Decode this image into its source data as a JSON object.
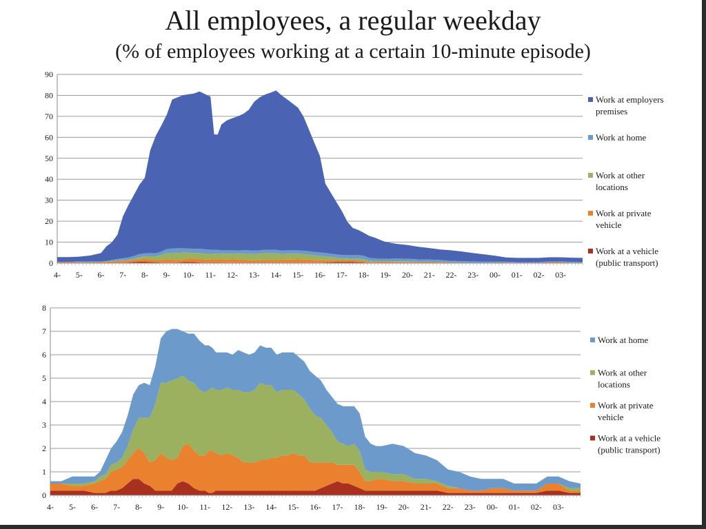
{
  "title": "All employees, a regular weekday",
  "subtitle": "(% of employees working at a certain 10-minute episode)",
  "x_ticks": [
    "4-",
    "5-",
    "6-",
    "7-",
    "8-",
    "9-",
    "10-",
    "11-",
    "12-",
    "13-",
    "14-",
    "15-",
    "16-",
    "17-",
    "18-",
    "19-",
    "20-",
    "21-",
    "22-",
    "23-",
    "00-",
    "01-",
    "02-",
    "03-"
  ],
  "chart_data": [
    {
      "type": "area",
      "stacked": true,
      "x_unit": "hour of day (10-minute episodes, 04:00 to 04:00)",
      "ylim": [
        0,
        90
      ],
      "y_ticks": [
        0,
        10,
        20,
        30,
        40,
        50,
        60,
        70,
        80,
        90
      ],
      "grid": true,
      "legend_position": "right",
      "x": [
        4,
        4.5,
        5,
        5.5,
        6,
        6.25,
        6.5,
        6.75,
        7,
        7.25,
        7.5,
        7.75,
        8,
        8.25,
        8.5,
        8.75,
        9,
        9.25,
        9.5,
        9.75,
        10,
        10.25,
        10.5,
        10.75,
        11,
        11.17,
        11.33,
        11.5,
        11.75,
        12,
        12.25,
        12.5,
        12.75,
        13,
        13.25,
        13.5,
        13.75,
        14,
        14.25,
        14.5,
        14.75,
        15,
        15.25,
        15.5,
        15.75,
        16,
        16.25,
        16.5,
        16.75,
        17,
        17.25,
        17.5,
        17.75,
        18,
        18.25,
        18.5,
        18.75,
        19,
        19.5,
        20,
        20.5,
        21,
        21.5,
        22,
        22.5,
        23,
        23.5,
        24,
        24.5,
        25,
        25.5,
        26,
        26.5,
        27,
        27.5,
        28
      ],
      "series": [
        {
          "name": "Work at a vehicle (public transport)",
          "color": "#a9301e",
          "values": [
            0.2,
            0.2,
            0.2,
            0.2,
            0.1,
            0.1,
            0.1,
            0.2,
            0.2,
            0.3,
            0.5,
            0.7,
            0.7,
            0.5,
            0.4,
            0.2,
            0.2,
            0.2,
            0.2,
            0.5,
            0.6,
            0.5,
            0.3,
            0.2,
            0.2,
            0.1,
            0.1,
            0.2,
            0.2,
            0.2,
            0.2,
            0.2,
            0.2,
            0.2,
            0.2,
            0.2,
            0.2,
            0.2,
            0.2,
            0.2,
            0.2,
            0.2,
            0.2,
            0.2,
            0.2,
            0.2,
            0.3,
            0.4,
            0.5,
            0.6,
            0.5,
            0.5,
            0.4,
            0.3,
            0.2,
            0.2,
            0.2,
            0.2,
            0.2,
            0.2,
            0.2,
            0.2,
            0.2,
            0.1,
            0.1,
            0.1,
            0.1,
            0.1,
            0.1,
            0.1,
            0.1,
            0.1,
            0.2,
            0.2,
            0.1,
            0.1
          ]
        },
        {
          "name": "Work at private vehicle",
          "color": "#e9812f",
          "values": [
            0.3,
            0.3,
            0.2,
            0.2,
            0.4,
            0.5,
            0.6,
            0.8,
            0.9,
            0.9,
            1.0,
            1.1,
            1.3,
            1.3,
            1.0,
            1.3,
            1.6,
            1.4,
            1.3,
            1.1,
            1.5,
            1.7,
            1.6,
            1.5,
            1.5,
            1.8,
            1.8,
            1.6,
            1.5,
            1.6,
            1.5,
            1.4,
            1.2,
            1.2,
            1.2,
            1.3,
            1.3,
            1.4,
            1.4,
            1.5,
            1.5,
            1.6,
            1.5,
            1.5,
            1.2,
            1.2,
            1.1,
            1.0,
            0.9,
            0.7,
            0.8,
            0.8,
            0.9,
            0.7,
            0.4,
            0.4,
            0.5,
            0.5,
            0.4,
            0.4,
            0.3,
            0.3,
            0.3,
            0.2,
            0.2,
            0.1,
            0.1,
            0.2,
            0.2,
            0.1,
            0.1,
            0.1,
            0.3,
            0.3,
            0.1,
            0.1
          ]
        },
        {
          "name": "Work at other locations",
          "color": "#9bb15f",
          "values": [
            0,
            0,
            0.1,
            0.1,
            0.1,
            0.2,
            0.2,
            0.3,
            0.3,
            0.4,
            0.6,
            1.0,
            1.3,
            1.5,
            1.9,
            2.4,
            3.0,
            3.2,
            3.4,
            3.4,
            3.0,
            2.7,
            2.9,
            2.8,
            2.7,
            2.6,
            2.7,
            2.7,
            2.8,
            2.8,
            2.8,
            2.9,
            3.0,
            3.0,
            3.1,
            3.3,
            3.2,
            3.1,
            2.8,
            2.8,
            2.8,
            2.7,
            2.6,
            2.4,
            2.3,
            2.0,
            1.9,
            1.6,
            1.3,
            1.0,
            0.9,
            0.8,
            0.9,
            0.9,
            0.5,
            0.4,
            0.3,
            0.3,
            0.3,
            0.3,
            0.2,
            0.2,
            0.1,
            0.1,
            0,
            0,
            0,
            0,
            0,
            0,
            0,
            0,
            0,
            0,
            0.1,
            0.1
          ]
        },
        {
          "name": "Work at home",
          "color": "#6c9bcb",
          "values": [
            0.1,
            0.1,
            0.3,
            0.3,
            0.2,
            0.2,
            0.6,
            0.7,
            0.9,
            1.1,
            1.3,
            1.5,
            1.4,
            1.5,
            1.4,
            1.6,
            1.9,
            2.2,
            2.2,
            2.1,
            1.9,
            2.0,
            2.1,
            2.1,
            2.0,
            1.9,
            1.7,
            1.6,
            1.6,
            1.5,
            1.5,
            1.7,
            1.7,
            1.6,
            1.6,
            1.6,
            1.6,
            1.6,
            1.6,
            1.6,
            1.6,
            1.6,
            1.6,
            1.6,
            1.6,
            1.7,
            1.6,
            1.5,
            1.5,
            1.6,
            1.6,
            1.7,
            1.6,
            1.6,
            1.4,
            1.2,
            1.1,
            1.1,
            1.3,
            1.2,
            1.1,
            1.0,
            0.9,
            0.7,
            0.7,
            0.6,
            0.5,
            0.4,
            0.4,
            0.3,
            0.3,
            0.3,
            0.3,
            0.3,
            0.3,
            0.2
          ]
        },
        {
          "name": "Work at employers premises",
          "color": "#4a63b3",
          "values": [
            2.3,
            2.3,
            2.3,
            2.8,
            4.0,
            7.0,
            8.5,
            11.5,
            20.0,
            25.0,
            29.0,
            33.0,
            36.0,
            49.0,
            56.0,
            60.0,
            64.0,
            71.0,
            72.0,
            73.0,
            73.5,
            74.0,
            75.0,
            74.0,
            73.0,
            55.0,
            55.0,
            60.0,
            62.0,
            63.0,
            64.0,
            65.0,
            67.0,
            71.0,
            73.0,
            74.0,
            75.0,
            76.0,
            74.0,
            72.0,
            70.0,
            68.0,
            64.0,
            58.0,
            52.0,
            46.0,
            33.0,
            29.0,
            25.0,
            21.0,
            16.0,
            13.0,
            12.0,
            11.0,
            10.5,
            10.0,
            9.0,
            8.0,
            7.0,
            6.5,
            6.0,
            5.5,
            5.0,
            5.0,
            4.5,
            4.0,
            3.5,
            2.8,
            2.0,
            2.0,
            2.0,
            2.0,
            2.0,
            2.0,
            2.0,
            2.0
          ]
        }
      ]
    },
    {
      "type": "area",
      "stacked": true,
      "x_unit": "hour of day (10-minute episodes, 04:00 to 04:00)",
      "ylim": [
        0,
        8
      ],
      "y_ticks": [
        0,
        1,
        2,
        3,
        4,
        5,
        6,
        7,
        8
      ],
      "grid": true,
      "legend_position": "right",
      "x": [
        4,
        4.5,
        5,
        5.5,
        6,
        6.25,
        6.5,
        6.75,
        7,
        7.25,
        7.5,
        7.75,
        8,
        8.25,
        8.5,
        8.75,
        9,
        9.25,
        9.5,
        9.75,
        10,
        10.25,
        10.5,
        10.75,
        11,
        11.17,
        11.33,
        11.5,
        11.75,
        12,
        12.25,
        12.5,
        12.75,
        13,
        13.25,
        13.5,
        13.75,
        14,
        14.25,
        14.5,
        14.75,
        15,
        15.25,
        15.5,
        15.75,
        16,
        16.25,
        16.5,
        16.75,
        17,
        17.25,
        17.5,
        17.75,
        18,
        18.25,
        18.5,
        18.75,
        19,
        19.5,
        20,
        20.5,
        21,
        21.5,
        22,
        22.5,
        23,
        23.5,
        24,
        24.5,
        25,
        25.5,
        26,
        26.5,
        27,
        27.5,
        28
      ],
      "series": [
        {
          "name": "Work at a vehicle (public transport)",
          "color": "#a9301e",
          "values": [
            0.2,
            0.2,
            0.2,
            0.2,
            0.1,
            0.1,
            0.1,
            0.2,
            0.2,
            0.3,
            0.5,
            0.7,
            0.7,
            0.5,
            0.4,
            0.2,
            0.2,
            0.2,
            0.2,
            0.5,
            0.6,
            0.5,
            0.3,
            0.2,
            0.2,
            0.1,
            0.1,
            0.2,
            0.2,
            0.2,
            0.2,
            0.2,
            0.2,
            0.2,
            0.2,
            0.2,
            0.2,
            0.2,
            0.2,
            0.2,
            0.2,
            0.2,
            0.2,
            0.2,
            0.2,
            0.2,
            0.3,
            0.4,
            0.5,
            0.6,
            0.5,
            0.5,
            0.4,
            0.3,
            0.2,
            0.2,
            0.2,
            0.2,
            0.2,
            0.2,
            0.2,
            0.2,
            0.2,
            0.1,
            0.1,
            0.1,
            0.1,
            0.1,
            0.1,
            0.1,
            0.1,
            0.1,
            0.2,
            0.2,
            0.1,
            0.1
          ]
        },
        {
          "name": "Work at private vehicle",
          "color": "#e9812f",
          "values": [
            0.3,
            0.3,
            0.2,
            0.2,
            0.4,
            0.5,
            0.6,
            0.8,
            0.9,
            0.9,
            1.0,
            1.1,
            1.3,
            1.3,
            1.0,
            1.3,
            1.6,
            1.4,
            1.3,
            1.1,
            1.5,
            1.7,
            1.6,
            1.5,
            1.5,
            1.8,
            1.8,
            1.6,
            1.5,
            1.6,
            1.5,
            1.4,
            1.2,
            1.2,
            1.2,
            1.3,
            1.3,
            1.4,
            1.4,
            1.5,
            1.5,
            1.6,
            1.5,
            1.5,
            1.2,
            1.2,
            1.1,
            1.0,
            0.9,
            0.7,
            0.8,
            0.8,
            0.9,
            0.7,
            0.4,
            0.4,
            0.5,
            0.5,
            0.4,
            0.4,
            0.3,
            0.3,
            0.3,
            0.2,
            0.2,
            0.1,
            0.1,
            0.2,
            0.2,
            0.1,
            0.1,
            0.1,
            0.3,
            0.3,
            0.1,
            0.1
          ]
        },
        {
          "name": "Work at other locations",
          "color": "#9bb15f",
          "values": [
            0,
            0,
            0.1,
            0.1,
            0.1,
            0.2,
            0.2,
            0.3,
            0.3,
            0.4,
            0.6,
            1.0,
            1.3,
            1.5,
            1.9,
            2.4,
            3.0,
            3.2,
            3.4,
            3.4,
            3.0,
            2.7,
            2.9,
            2.8,
            2.7,
            2.6,
            2.7,
            2.7,
            2.8,
            2.8,
            2.8,
            2.9,
            3.0,
            3.0,
            3.1,
            3.3,
            3.2,
            3.1,
            2.8,
            2.8,
            2.8,
            2.7,
            2.6,
            2.4,
            2.3,
            2.0,
            1.9,
            1.6,
            1.3,
            1.0,
            0.9,
            0.8,
            0.9,
            0.9,
            0.5,
            0.4,
            0.3,
            0.3,
            0.3,
            0.3,
            0.2,
            0.2,
            0.1,
            0.1,
            0,
            0,
            0,
            0,
            0,
            0,
            0,
            0,
            0,
            0,
            0.1,
            0.1
          ]
        },
        {
          "name": "Work at home",
          "color": "#6c9bcb",
          "values": [
            0.1,
            0.1,
            0.3,
            0.3,
            0.2,
            0.2,
            0.6,
            0.7,
            0.9,
            1.1,
            1.3,
            1.5,
            1.4,
            1.5,
            1.4,
            1.6,
            1.9,
            2.2,
            2.2,
            2.1,
            1.9,
            2.0,
            2.1,
            2.1,
            2.0,
            1.9,
            1.7,
            1.6,
            1.6,
            1.5,
            1.5,
            1.7,
            1.7,
            1.6,
            1.6,
            1.6,
            1.6,
            1.6,
            1.6,
            1.6,
            1.6,
            1.6,
            1.6,
            1.6,
            1.6,
            1.7,
            1.6,
            1.5,
            1.5,
            1.6,
            1.6,
            1.7,
            1.6,
            1.6,
            1.4,
            1.2,
            1.1,
            1.1,
            1.3,
            1.2,
            1.1,
            1.0,
            0.9,
            0.7,
            0.7,
            0.6,
            0.5,
            0.4,
            0.4,
            0.3,
            0.3,
            0.3,
            0.3,
            0.3,
            0.3,
            0.2
          ]
        }
      ]
    }
  ],
  "legend_1": [
    {
      "color": "#4a63b3",
      "lines": [
        "Work at employers",
        "premises"
      ]
    },
    {
      "color": "#6c9bcb",
      "lines": [
        "Work at home"
      ]
    },
    {
      "color": "#9bb15f",
      "lines": [
        "Work at other",
        "locations"
      ]
    },
    {
      "color": "#e9812f",
      "lines": [
        "Work at private",
        "vehicle"
      ]
    },
    {
      "color": "#a9301e",
      "lines": [
        "Work at a vehicle",
        "(public transport)"
      ]
    }
  ],
  "legend_2": [
    {
      "color": "#6c9bcb",
      "lines": [
        "Work at home"
      ]
    },
    {
      "color": "#9bb15f",
      "lines": [
        "Work at other",
        "locations"
      ]
    },
    {
      "color": "#e9812f",
      "lines": [
        "Work at private",
        "vehicle"
      ]
    },
    {
      "color": "#a9301e",
      "lines": [
        "Work at a vehicle",
        "(public transport)"
      ]
    }
  ]
}
